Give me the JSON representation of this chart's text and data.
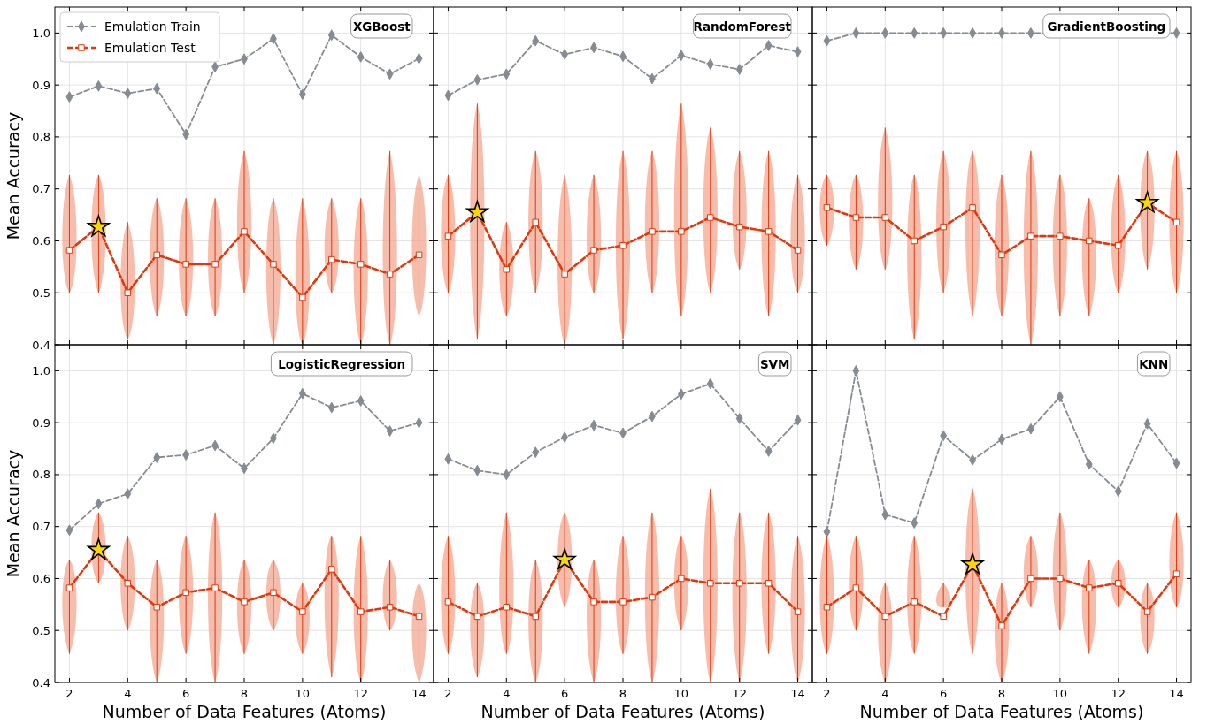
{
  "chart_data": [
    {
      "type": "line",
      "title": "XGBoost",
      "ylabel": "Mean Accuracy",
      "x": [
        2,
        3,
        4,
        5,
        6,
        7,
        8,
        9,
        10,
        11,
        12,
        13,
        14
      ],
      "xlim": [
        1.5,
        14.5
      ],
      "xticks": [
        2,
        4,
        6,
        8,
        10,
        12,
        14
      ],
      "ylim": [
        0.4,
        1.05
      ],
      "yticks": [
        0.4,
        0.5,
        0.6,
        0.7,
        0.8,
        0.9,
        {
          "value": 1,
          "label": "1.0"
        }
      ],
      "grid": true,
      "legend": "top left",
      "tick_labels": "y",
      "series": [
        {
          "name": "Emulation Train",
          "color": "#868b92",
          "marker": "diamond",
          "line_style": "dashed",
          "values": [
            0.877,
            0.898,
            0.884,
            0.893,
            0.805,
            0.935,
            0.95,
            0.989,
            0.882,
            0.996,
            0.954,
            0.921,
            0.951
          ]
        },
        {
          "name": "Emulation Test",
          "color": "#e0380c",
          "marker": "square",
          "line_style": "dashed",
          "values": [
            0.582,
            0.627,
            0.5,
            0.573,
            0.555,
            0.555,
            0.618,
            0.555,
            0.491,
            0.564,
            0.555,
            0.536,
            0.573
          ],
          "errors": [
            [
              0.5,
              0.727
            ],
            [
              0.5,
              0.727
            ],
            [
              0.41,
              0.636
            ],
            [
              0.455,
              0.682
            ],
            [
              0.455,
              0.682
            ],
            [
              0.455,
              0.682
            ],
            [
              0.5,
              0.773
            ],
            [
              0.4,
              0.682
            ],
            [
              0.4,
              0.682
            ],
            [
              0.5,
              0.682
            ],
            [
              0.4,
              0.682
            ],
            [
              0.4,
              0.773
            ],
            [
              0.455,
              0.727
            ]
          ]
        },
        {
          "type": "scatter",
          "color": "#ffd700",
          "marker": "star",
          "x": [
            3
          ],
          "values": [
            0.627
          ]
        }
      ]
    },
    {
      "type": "line",
      "title": "RandomForest",
      "x": [
        2,
        3,
        4,
        5,
        6,
        7,
        8,
        9,
        10,
        11,
        12,
        13,
        14
      ],
      "xlim": [
        1.5,
        14.5
      ],
      "xticks": [
        2,
        4,
        6,
        8,
        10,
        12,
        14
      ],
      "ylim": [
        0.4,
        1.05
      ],
      "yticks": [
        0.4,
        0.5,
        0.6,
        0.7,
        0.8,
        0.9,
        1.0
      ],
      "grid": true,
      "tick_labels": false,
      "series": [
        {
          "color": "#868b92",
          "marker": "diamond",
          "line_style": "dashed",
          "values": [
            0.88,
            0.91,
            0.921,
            0.985,
            0.959,
            0.972,
            0.955,
            0.912,
            0.957,
            0.94,
            0.93,
            0.976,
            0.964
          ]
        },
        {
          "color": "#e0380c",
          "marker": "square",
          "line_style": "dashed",
          "values": [
            0.609,
            0.655,
            0.545,
            0.636,
            0.536,
            0.582,
            0.591,
            0.618,
            0.618,
            0.645,
            0.627,
            0.618,
            0.582
          ],
          "errors": [
            [
              0.5,
              0.727
            ],
            [
              0.41,
              0.864
            ],
            [
              0.455,
              0.636
            ],
            [
              0.5,
              0.773
            ],
            [
              0.4,
              0.727
            ],
            [
              0.5,
              0.727
            ],
            [
              0.41,
              0.773
            ],
            [
              0.5,
              0.773
            ],
            [
              0.455,
              0.864
            ],
            [
              0.5,
              0.818
            ],
            [
              0.545,
              0.773
            ],
            [
              0.455,
              0.773
            ],
            [
              0.5,
              0.727
            ]
          ]
        },
        {
          "type": "scatter",
          "color": "#ffd700",
          "marker": "star",
          "x": [
            3
          ],
          "values": [
            0.655
          ]
        }
      ]
    },
    {
      "type": "line",
      "title": "GradientBoosting",
      "x": [
        2,
        3,
        4,
        5,
        6,
        7,
        8,
        9,
        10,
        11,
        12,
        13,
        14
      ],
      "xlim": [
        1.5,
        14.5
      ],
      "xticks": [
        2,
        4,
        6,
        8,
        10,
        12,
        14
      ],
      "ylim": [
        0.4,
        1.05
      ],
      "yticks": [
        0.4,
        0.5,
        0.6,
        0.7,
        0.8,
        0.9,
        1.0
      ],
      "grid": true,
      "tick_labels": false,
      "series": [
        {
          "color": "#868b92",
          "marker": "diamond",
          "line_style": "dashed",
          "values": [
            0.985,
            1.0,
            1.0,
            1.0,
            1.0,
            1.0,
            1.0,
            1.0,
            null,
            null,
            null,
            null,
            1.0
          ]
        },
        {
          "color": "#e0380c",
          "marker": "square",
          "line_style": "dashed",
          "values": [
            0.664,
            0.645,
            0.645,
            0.6,
            0.627,
            0.664,
            0.573,
            0.609,
            0.609,
            0.6,
            0.591,
            0.673,
            0.636
          ],
          "errors": [
            [
              0.591,
              0.727
            ],
            [
              0.545,
              0.727
            ],
            [
              0.545,
              0.818
            ],
            [
              0.41,
              0.727
            ],
            [
              0.5,
              0.773
            ],
            [
              0.455,
              0.773
            ],
            [
              0.455,
              0.727
            ],
            [
              0.4,
              0.773
            ],
            [
              0.455,
              0.727
            ],
            [
              0.455,
              0.682
            ],
            [
              0.5,
              0.727
            ],
            [
              0.545,
              0.773
            ],
            [
              0.5,
              0.773
            ]
          ]
        },
        {
          "type": "scatter",
          "color": "#ffd700",
          "marker": "star",
          "x": [
            13
          ],
          "values": [
            0.673
          ]
        }
      ]
    },
    {
      "type": "line",
      "title": "LogisticRegression",
      "xlabel": "Number of Data Features (Atoms)",
      "ylabel": "Mean Accuracy",
      "x": [
        2,
        3,
        4,
        5,
        6,
        7,
        8,
        9,
        10,
        11,
        12,
        13,
        14
      ],
      "xlim": [
        1.5,
        14.5
      ],
      "xticks": [
        2,
        4,
        6,
        8,
        10,
        12,
        14
      ],
      "ylim": [
        0.4,
        1.05
      ],
      "yticks": [
        0.4,
        0.5,
        0.6,
        0.7,
        0.8,
        0.9,
        {
          "value": 1,
          "label": "1.0"
        }
      ],
      "grid": true,
      "series": [
        {
          "color": "#868b92",
          "marker": "diamond",
          "line_style": "dashed",
          "values": [
            0.693,
            0.744,
            0.763,
            0.833,
            0.838,
            0.856,
            0.812,
            0.87,
            0.956,
            0.929,
            0.942,
            0.884,
            0.9
          ]
        },
        {
          "color": "#e0380c",
          "marker": "square",
          "line_style": "dashed",
          "values": [
            0.582,
            0.655,
            0.591,
            0.545,
            0.573,
            0.582,
            0.555,
            0.573,
            0.536,
            0.618,
            0.536,
            0.545,
            0.527
          ],
          "errors": [
            [
              0.455,
              0.636
            ],
            [
              0.591,
              0.727
            ],
            [
              0.5,
              0.682
            ],
            [
              0.4,
              0.636
            ],
            [
              0.455,
              0.682
            ],
            [
              0.4,
              0.727
            ],
            [
              0.455,
              0.636
            ],
            [
              0.5,
              0.636
            ],
            [
              0.455,
              0.591
            ],
            [
              0.41,
              0.682
            ],
            [
              0.4,
              0.682
            ],
            [
              0.5,
              0.636
            ],
            [
              0.4,
              0.591
            ]
          ]
        },
        {
          "type": "scatter",
          "color": "#ffd700",
          "marker": "star",
          "x": [
            3
          ],
          "values": [
            0.655
          ]
        }
      ]
    },
    {
      "type": "line",
      "title": "SVM",
      "xlabel": "Number of Data Features (Atoms)",
      "x": [
        2,
        3,
        4,
        5,
        6,
        7,
        8,
        9,
        10,
        11,
        12,
        13,
        14
      ],
      "xlim": [
        1.5,
        14.5
      ],
      "xticks": [
        2,
        4,
        6,
        8,
        10,
        12,
        14
      ],
      "ylim": [
        0.4,
        1.05
      ],
      "yticks": [
        0.4,
        0.5,
        0.6,
        0.7,
        0.8,
        0.9,
        1.0
      ],
      "grid": true,
      "tick_labels": "x",
      "series": [
        {
          "color": "#868b92",
          "marker": "diamond",
          "line_style": "dashed",
          "values": [
            0.83,
            0.808,
            0.8,
            0.843,
            0.872,
            0.895,
            0.88,
            0.912,
            0.955,
            0.975,
            0.908,
            0.845,
            0.905
          ]
        },
        {
          "color": "#e0380c",
          "marker": "square",
          "line_style": "dashed",
          "values": [
            0.555,
            0.527,
            0.545,
            0.527,
            0.636,
            0.555,
            0.555,
            0.564,
            0.6,
            0.591,
            0.591,
            0.591,
            0.536
          ],
          "errors": [
            [
              0.455,
              0.682
            ],
            [
              0.41,
              0.591
            ],
            [
              0.455,
              0.727
            ],
            [
              0.4,
              0.636
            ],
            [
              0.545,
              0.727
            ],
            [
              0.4,
              0.636
            ],
            [
              0.455,
              0.682
            ],
            [
              0.4,
              0.727
            ],
            [
              0.5,
              0.682
            ],
            [
              0.4,
              0.773
            ],
            [
              0.4,
              0.727
            ],
            [
              0.455,
              0.727
            ],
            [
              0.4,
              0.682
            ]
          ]
        },
        {
          "type": "scatter",
          "color": "#ffd700",
          "marker": "star",
          "x": [
            6
          ],
          "values": [
            0.636
          ]
        }
      ]
    },
    {
      "type": "line",
      "title": "KNN",
      "xlabel": "Number of Data Features (Atoms)",
      "x": [
        2,
        3,
        4,
        5,
        6,
        7,
        8,
        9,
        10,
        11,
        12,
        13,
        14
      ],
      "xlim": [
        1.5,
        14.5
      ],
      "xticks": [
        2,
        4,
        6,
        8,
        10,
        12,
        14
      ],
      "ylim": [
        0.4,
        1.05
      ],
      "yticks": [
        0.4,
        0.5,
        0.6,
        0.7,
        0.8,
        0.9,
        1.0
      ],
      "grid": true,
      "tick_labels": "x",
      "series": [
        {
          "color": "#868b92",
          "marker": "diamond",
          "line_style": "dashed",
          "values": [
            0.69,
            1.0,
            0.723,
            0.707,
            0.875,
            0.828,
            0.868,
            0.888,
            0.95,
            0.82,
            0.768,
            0.898,
            0.822
          ]
        },
        {
          "color": "#e0380c",
          "marker": "square",
          "line_style": "dashed",
          "values": [
            0.545,
            0.582,
            0.527,
            0.555,
            0.527,
            0.627,
            0.509,
            0.6,
            0.6,
            0.582,
            0.591,
            0.536,
            0.609
          ],
          "errors": [
            [
              0.455,
              0.682
            ],
            [
              0.5,
              0.682
            ],
            [
              0.4,
              0.591
            ],
            [
              0.455,
              0.682
            ],
            [
              0.545,
              0.591
            ],
            [
              0.455,
              0.773
            ],
            [
              0.4,
              0.591
            ],
            [
              0.545,
              0.682
            ],
            [
              0.5,
              0.727
            ],
            [
              0.455,
              0.636
            ],
            [
              0.545,
              0.636
            ],
            [
              0.455,
              0.591
            ],
            [
              0.545,
              0.727
            ]
          ]
        },
        {
          "type": "scatter",
          "color": "#ffd700",
          "marker": "star",
          "x": [
            7
          ],
          "values": [
            0.627
          ]
        }
      ]
    }
  ]
}
